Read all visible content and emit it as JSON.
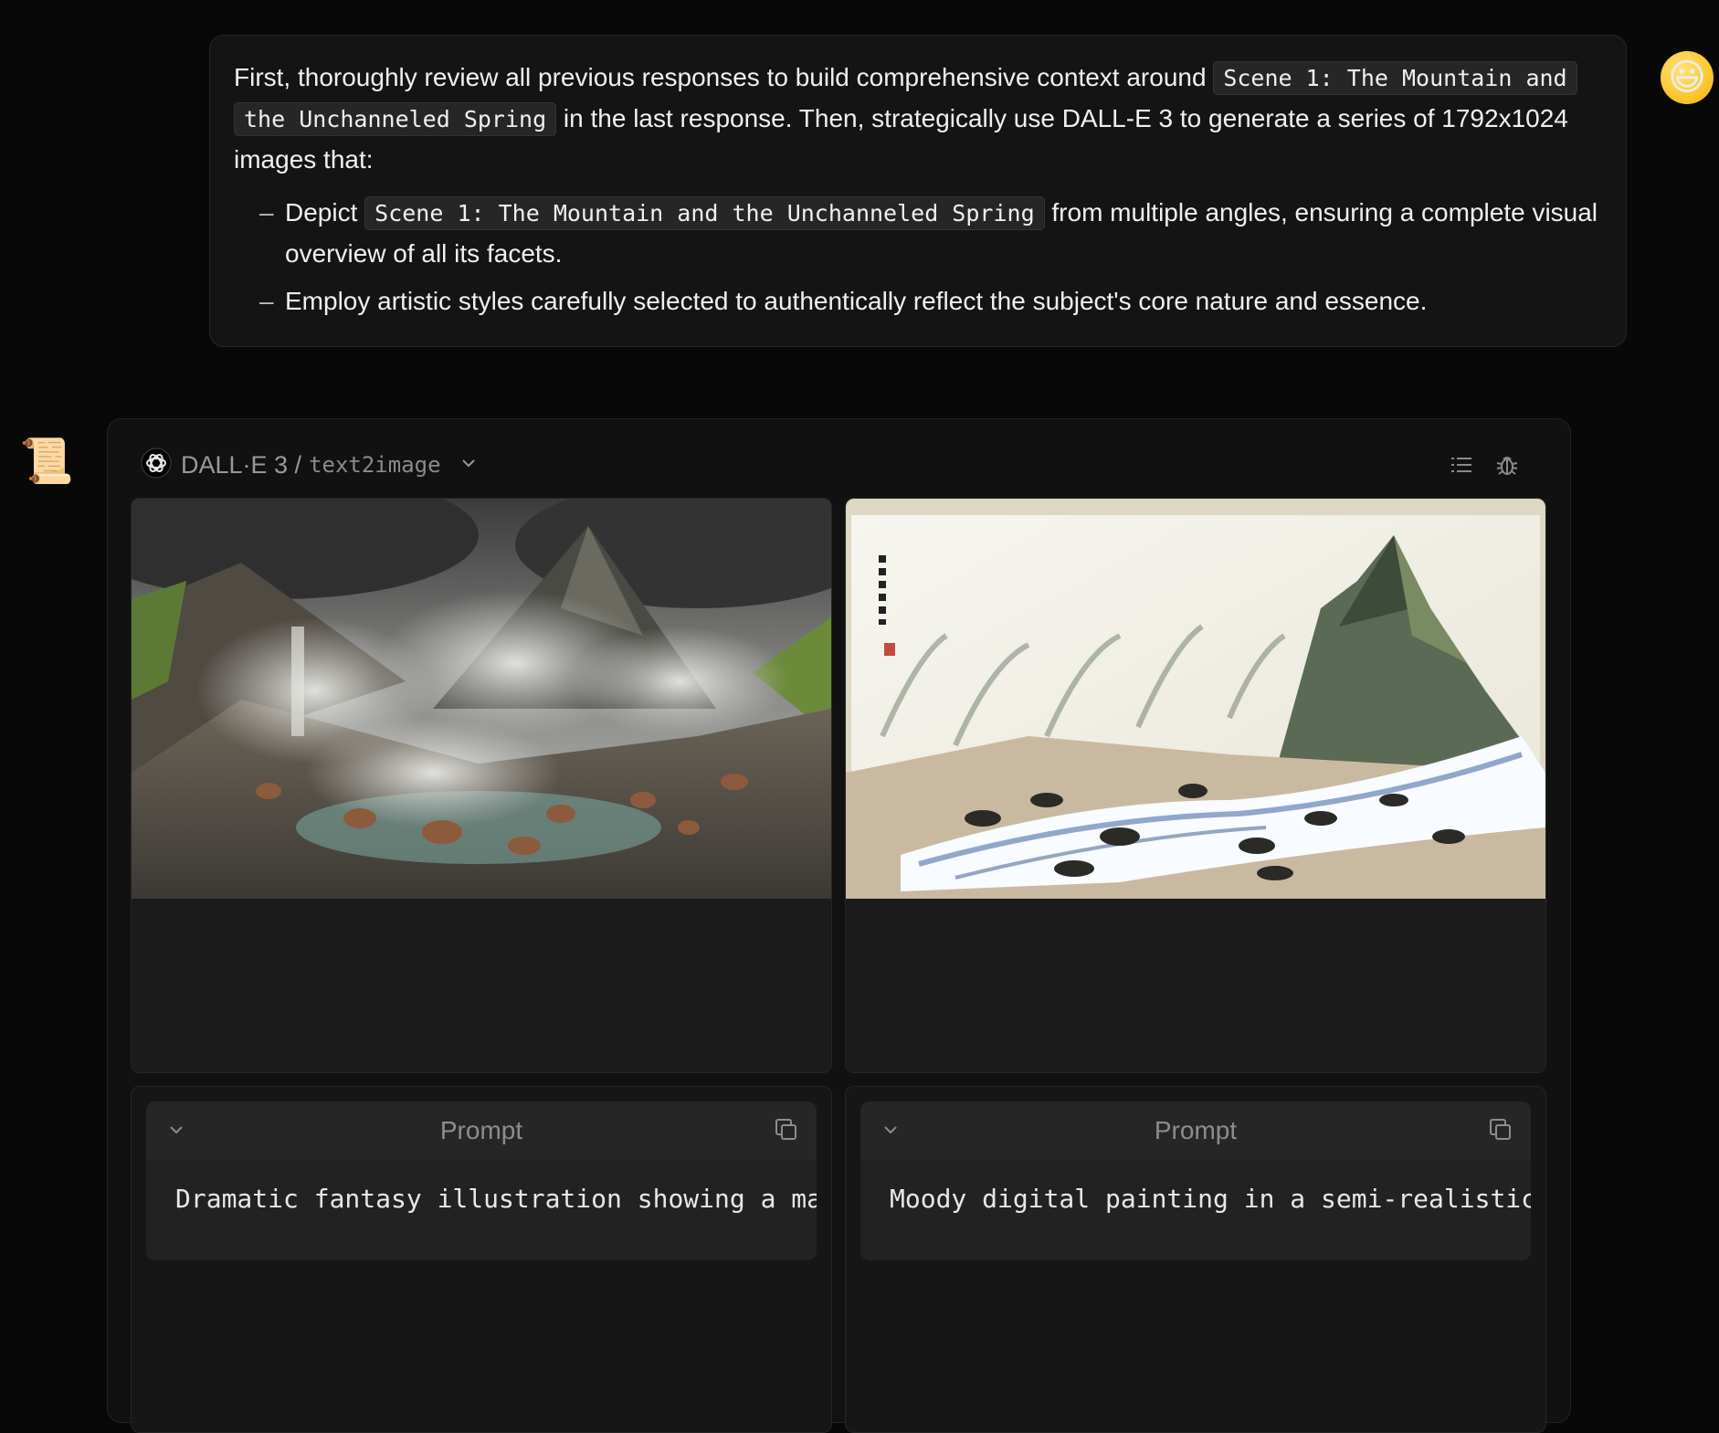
{
  "user_message": {
    "intro_1": "First, thoroughly review all previous responses to build comprehensive context around",
    "scene_code": "Scene 1: The Mountain and the Unchanneled Spring",
    "intro_2": "in the last response. Then, strategically use DALL-E 3 to generate a series of 1792x1024 images that:",
    "bullets": [
      {
        "prefix": "Depict",
        "code": "Scene 1: The Mountain and the Unchanneled Spring",
        "suffix": "from multiple angles, ensuring a complete visual overview of all its facets."
      },
      {
        "text": "Employ artistic styles carefully selected to authentically reflect the subject's core nature and essence."
      }
    ],
    "bullet_marker": "–"
  },
  "avatars": {
    "user": "smiling-face-emoji",
    "assistant": "scroll-emoji"
  },
  "tool_card": {
    "model": "DALL·E 3 /",
    "mode": "text2image",
    "icons": [
      "openai-logo-icon",
      "chevron-down-icon",
      "list-icon",
      "bug-icon"
    ]
  },
  "images": [
    {
      "alt": "Steaming volcanic valley with rocky spring beneath a mountain peak",
      "style": "3d-render"
    },
    {
      "alt": "Ink wash painting of a mountain above a rushing rocky spring with calligraphy",
      "style": "ink-wash"
    }
  ],
  "prompts": [
    {
      "title": "Prompt",
      "text": "Dramatic fantasy illustration showing a ma"
    },
    {
      "title": "Prompt",
      "text": "Moody digital painting in a semi-realistic"
    }
  ],
  "colors": {
    "background": "#080808",
    "panel": "#141414",
    "code_bg": "#262626"
  }
}
